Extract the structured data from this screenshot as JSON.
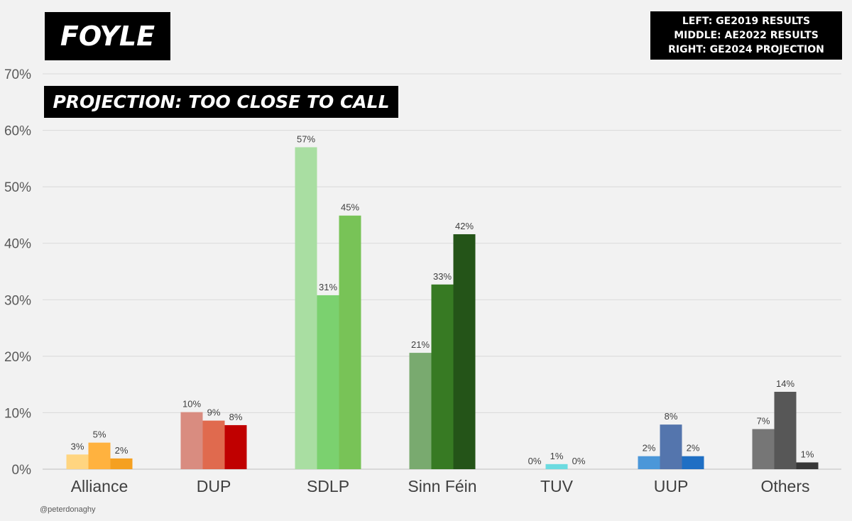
{
  "chart_data": {
    "type": "bar",
    "title": "FOYLE",
    "subtitle": "PROJECTION: TOO CLOSE TO CALL",
    "legend": [
      "LEFT: GE2019 RESULTS",
      "MIDDLE: AE2022 RESULTS",
      "RIGHT: GE2024 PROJECTION"
    ],
    "legend_position": "top-right",
    "categories": [
      "Alliance",
      "DUP",
      "SDLP",
      "Sinn Féin",
      "TUV",
      "UUP",
      "Others"
    ],
    "series": [
      {
        "name": "GE2019 Results",
        "values": [
          2.6,
          10.1,
          57.0,
          20.6,
          0.0,
          2.3,
          7.1
        ],
        "labels": [
          "3%",
          "10%",
          "57%",
          "21%",
          "0%",
          "2%",
          "7%"
        ]
      },
      {
        "name": "AE2022 Results",
        "values": [
          4.7,
          8.6,
          30.8,
          32.7,
          0.9,
          7.9,
          13.7
        ],
        "labels": [
          "5%",
          "9%",
          "31%",
          "33%",
          "1%",
          "8%",
          "14%"
        ]
      },
      {
        "name": "GE2024 Projection",
        "values": [
          1.9,
          7.8,
          44.9,
          41.6,
          0.0,
          2.3,
          1.2
        ],
        "labels": [
          "2%",
          "8%",
          "45%",
          "42%",
          "0%",
          "2%",
          "1%"
        ]
      }
    ],
    "colors": [
      [
        "#ffd580",
        "#ffb23f",
        "#f5a020"
      ],
      [
        "#d98c80",
        "#e06a4e",
        "#c00000"
      ],
      [
        "#a9dea2",
        "#7bd16f",
        "#78c357"
      ],
      [
        "#79aa6f",
        "#377a23",
        "#245418"
      ],
      [
        "#6bdbe0",
        "#6bdbe0",
        "#6bdbe0"
      ],
      [
        "#4b97d9",
        "#5475ad",
        "#1f6fc4"
      ],
      [
        "#767676",
        "#575757",
        "#383838"
      ]
    ],
    "y_ticks": [
      "0%",
      "10%",
      "20%",
      "30%",
      "40%",
      "50%",
      "60%",
      "70%"
    ],
    "ylim": [
      0,
      70
    ],
    "grid": true
  },
  "credit": "@peterdonaghy"
}
